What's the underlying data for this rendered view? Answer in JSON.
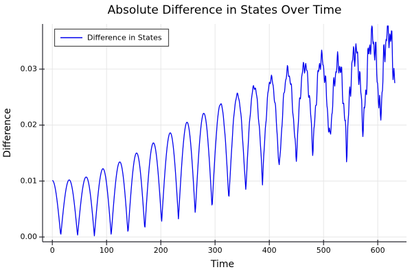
{
  "page": {
    "background": "#ffffff"
  },
  "chart_data": {
    "type": "line",
    "title": "Absolute Difference in States Over Time",
    "xlabel": "Time",
    "ylabel": "Difference",
    "legend": [
      {
        "label": "Difference in States",
        "color": "#0000ee"
      }
    ],
    "legend_position": "top-left",
    "grid": true,
    "axis": {
      "xlim": [
        -18,
        653
      ],
      "ylim": [
        -0.00086,
        0.03806
      ],
      "xticks": [
        0,
        100,
        200,
        300,
        400,
        500,
        600
      ],
      "xtick_labels": [
        "0",
        "100",
        "200",
        "300",
        "400",
        "500",
        "600"
      ],
      "yticks": [
        0,
        0.01,
        0.02,
        0.03
      ],
      "ytick_labels": [
        "0.00",
        "0.01",
        "0.02",
        "0.03"
      ]
    },
    "colors": {
      "line": "#0000ee",
      "grid": "#e6e6e6",
      "spine": "#26262d",
      "tick": "#26262d",
      "text": "#000000",
      "legend_border": "#4d4d4d",
      "legend_background": "#ffffff",
      "background": "#ffffff"
    },
    "series_model": {
      "description": "Absolute difference |x1-x2| oscillating as y(t)=trough(t)+(peak(t)-trough(t))*|cos(pi*t/period)|+jitter(t); envelopes read off the plot.",
      "t_start": 0,
      "t_end": 632,
      "samples": 840,
      "period": 31,
      "peak_envelope": [
        [
          0,
          0.0101
        ],
        [
          31,
          0.0102
        ],
        [
          62,
          0.0107
        ],
        [
          93,
          0.0122
        ],
        [
          124,
          0.0134
        ],
        [
          155,
          0.015
        ],
        [
          186,
          0.0168
        ],
        [
          217,
          0.0186
        ],
        [
          248,
          0.0205
        ],
        [
          279,
          0.0221
        ],
        [
          310,
          0.0238
        ],
        [
          341,
          0.0254
        ],
        [
          372,
          0.0269
        ],
        [
          403,
          0.0283
        ],
        [
          434,
          0.0296
        ],
        [
          465,
          0.0307
        ],
        [
          496,
          0.0318
        ],
        [
          527,
          0.031
        ],
        [
          558,
          0.0332
        ],
        [
          589,
          0.0357
        ],
        [
          613,
          0.0375
        ],
        [
          632,
          0.0358
        ]
      ],
      "trough_envelope": [
        [
          0,
          0.0002
        ],
        [
          46,
          0.0002
        ],
        [
          77,
          0.0002
        ],
        [
          108,
          0.0003
        ],
        [
          139,
          0.0006
        ],
        [
          170,
          0.0013
        ],
        [
          201,
          0.0026
        ],
        [
          232,
          0.0032
        ],
        [
          263,
          0.0041
        ],
        [
          294,
          0.0052
        ],
        [
          325,
          0.0066
        ],
        [
          356,
          0.0081
        ],
        [
          387,
          0.0099
        ],
        [
          418,
          0.0119
        ],
        [
          449,
          0.0136
        ],
        [
          480,
          0.0153
        ],
        [
          511,
          0.0169
        ],
        [
          542,
          0.0152
        ],
        [
          573,
          0.019
        ],
        [
          604,
          0.0206
        ],
        [
          632,
          0.0218
        ]
      ],
      "jitter": {
        "onset_t": 260,
        "max_amplitude": 0.0038,
        "power": 1.6,
        "freqs": [
          0.885,
          1.698
        ],
        "weights": [
          0.55,
          0.45
        ],
        "phases": [
          1.3,
          0.5
        ]
      },
      "y_clamp": [
        4e-05,
        0.0377
      ]
    }
  }
}
